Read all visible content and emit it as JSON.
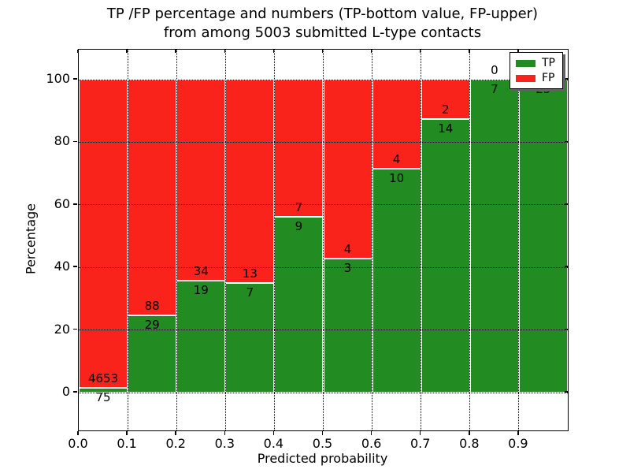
{
  "figure": {
    "title_line1": "TP /FP percentage and numbers (TP-bottom value, FP-upper)",
    "title_line2": "from among 5003 submitted L-type contacts",
    "xlabel": "Predicted probability",
    "ylabel": "Percentage"
  },
  "colors": {
    "tp": "#228b22",
    "fp": "#fa231b",
    "bar_edge": "#ffffff",
    "grid": "#000000",
    "legend_shadow": "#616161",
    "background": "#ffffff",
    "text": "#000000"
  },
  "legend": {
    "position": "upper right",
    "items": [
      {
        "label": "TP",
        "color": "#228b22"
      },
      {
        "label": "FP",
        "color": "#fa231b"
      }
    ]
  },
  "chart_data": {
    "type": "bar",
    "stacked": true,
    "normalized_to_percent": true,
    "title": "TP /FP percentage and numbers (TP-bottom value, FP-upper) from among 5003 submitted L-type contacts",
    "xlabel": "Predicted probability",
    "ylabel": "Percentage",
    "total_contacts": 5003,
    "bin_edges": [
      0.0,
      0.1,
      0.2,
      0.3,
      0.4,
      0.5,
      0.6,
      0.7,
      0.8,
      0.9,
      1.0
    ],
    "series": [
      {
        "name": "TP",
        "color": "#228b22",
        "counts": [
          75,
          29,
          19,
          7,
          9,
          3,
          10,
          14,
          7,
          25
        ]
      },
      {
        "name": "FP",
        "color": "#fa231b",
        "counts": [
          4653,
          88,
          34,
          13,
          7,
          4,
          4,
          2,
          0,
          0
        ]
      }
    ],
    "tp_percent": [
      1.59,
      24.79,
      35.85,
      35.0,
      56.25,
      42.86,
      71.43,
      87.5,
      100.0,
      100.0
    ],
    "xticks": [
      "0.0",
      "0.1",
      "0.2",
      "0.3",
      "0.4",
      "0.5",
      "0.6",
      "0.7",
      "0.8",
      "0.9"
    ],
    "yticks": [
      0,
      20,
      40,
      60,
      80,
      100
    ],
    "xlim": [
      0.0,
      1.0
    ],
    "ylim": [
      -12,
      109
    ],
    "grid": true,
    "grid_style": "dotted",
    "legend_position": "upper right"
  }
}
